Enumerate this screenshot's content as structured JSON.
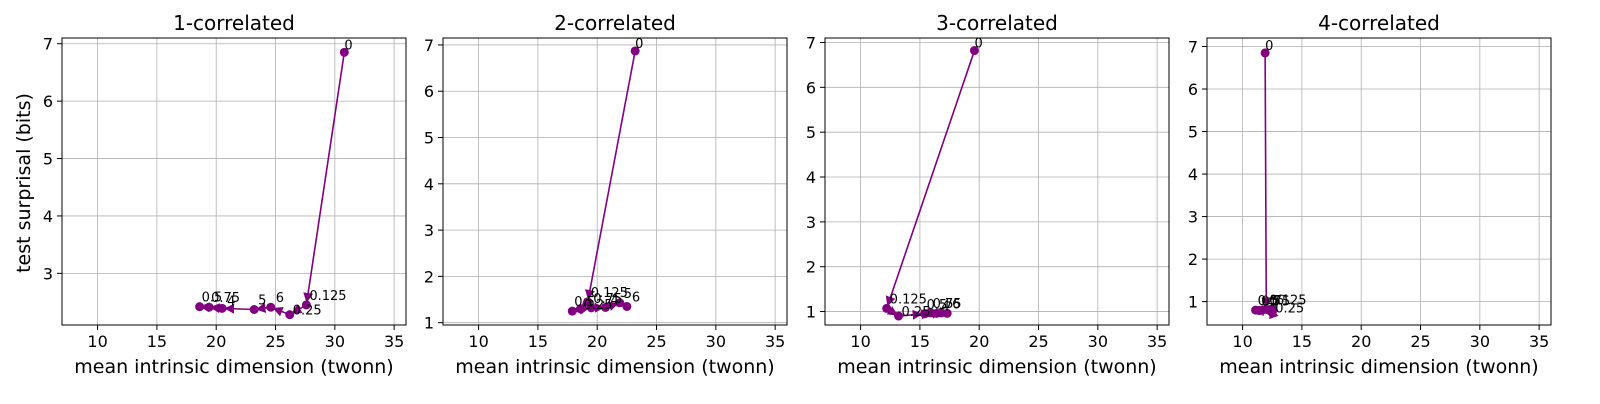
{
  "figure": {
    "ylabel": "test surprisal (bits)"
  },
  "chart_data": [
    {
      "type": "scatter",
      "title": "1-correlated",
      "xlabel": "mean intrinsic dimension (twonn)",
      "xlim": [
        7,
        36
      ],
      "ylim": [
        2.1,
        7.1
      ],
      "xticks": [
        10,
        15,
        20,
        25,
        30,
        35
      ],
      "yticks": [
        3,
        4,
        5,
        6,
        7
      ],
      "grid": true,
      "color": "#800080",
      "points": [
        {
          "label": "0",
          "x": 30.8,
          "y": 6.85
        },
        {
          "label": "0.125",
          "x": 27.6,
          "y": 2.45
        },
        {
          "label": "0.25",
          "x": 26.2,
          "y": 2.28
        },
        {
          "label": "0.5",
          "x": 18.6,
          "y": 2.42
        },
        {
          "label": "0.75",
          "x": 19.4,
          "y": 2.41
        },
        {
          "label": "4",
          "x": 20.5,
          "y": 2.39
        },
        {
          "label": "5",
          "x": 23.2,
          "y": 2.37
        },
        {
          "label": "6",
          "x": 24.6,
          "y": 2.41
        }
      ],
      "path": [
        "0",
        "0.125",
        "0.25",
        "6",
        "5",
        "4",
        "0.75",
        "0.5"
      ]
    },
    {
      "type": "scatter",
      "title": "2-correlated",
      "xlabel": "mean intrinsic dimension (twonn)",
      "xlim": [
        7,
        36
      ],
      "ylim": [
        0.95,
        7.15
      ],
      "xticks": [
        10,
        15,
        20,
        25,
        30,
        35
      ],
      "yticks": [
        1,
        2,
        3,
        4,
        5,
        6,
        7
      ],
      "grid": true,
      "color": "#800080",
      "points": [
        {
          "label": "0",
          "x": 23.2,
          "y": 6.87
        },
        {
          "label": "0.125",
          "x": 19.2,
          "y": 1.45
        },
        {
          "label": "0.25",
          "x": 18.6,
          "y": 1.3
        },
        {
          "label": "0.5",
          "x": 17.9,
          "y": 1.25
        },
        {
          "label": "0.75",
          "x": 19.5,
          "y": 1.32
        },
        {
          "label": "4",
          "x": 20.7,
          "y": 1.33
        },
        {
          "label": "5",
          "x": 21.9,
          "y": 1.43
        },
        {
          "label": "6",
          "x": 22.5,
          "y": 1.35
        }
      ],
      "path": [
        "0",
        "0.125",
        "0.25",
        "0.5",
        "0.75",
        "4",
        "5",
        "6"
      ]
    },
    {
      "type": "scatter",
      "title": "3-correlated",
      "xlabel": "mean intrinsic dimension (twonn)",
      "xlim": [
        7,
        36
      ],
      "ylim": [
        0.7,
        7.1
      ],
      "xticks": [
        10,
        15,
        20,
        25,
        30,
        35
      ],
      "yticks": [
        1,
        2,
        3,
        4,
        5,
        6,
        7
      ],
      "grid": true,
      "color": "#800080",
      "points": [
        {
          "label": "0",
          "x": 19.6,
          "y": 6.82
        },
        {
          "label": "0.125",
          "x": 12.2,
          "y": 1.07
        },
        {
          "label": "0.25",
          "x": 13.2,
          "y": 0.9
        },
        {
          "label": "0.5",
          "x": 15.4,
          "y": 0.95
        },
        {
          "label": "0.75",
          "x": 15.9,
          "y": 0.97
        },
        {
          "label": "4",
          "x": 16.4,
          "y": 0.96
        },
        {
          "label": "5",
          "x": 16.8,
          "y": 0.97
        },
        {
          "label": "6",
          "x": 17.3,
          "y": 0.96
        }
      ],
      "path": [
        "0",
        "0.125",
        "0.25",
        "0.5",
        "0.75",
        "4",
        "5",
        "6"
      ]
    },
    {
      "type": "scatter",
      "title": "4-correlated",
      "xlabel": "mean intrinsic dimension (twonn)",
      "xlim": [
        7,
        36
      ],
      "ylim": [
        0.45,
        7.2
      ],
      "xticks": [
        10,
        15,
        20,
        25,
        30,
        35
      ],
      "yticks": [
        1,
        2,
        3,
        4,
        5,
        6,
        7
      ],
      "grid": true,
      "color": "#800080",
      "points": [
        {
          "label": "0",
          "x": 11.9,
          "y": 6.85
        },
        {
          "label": "0.125",
          "x": 12.0,
          "y": 0.82
        },
        {
          "label": "0.25",
          "x": 12.5,
          "y": 0.74
        },
        {
          "label": "0.5",
          "x": 11.1,
          "y": 0.8
        },
        {
          "label": "0.75",
          "x": 11.4,
          "y": 0.79
        },
        {
          "label": "4",
          "x": 11.7,
          "y": 0.81
        },
        {
          "label": "5",
          "x": 12.2,
          "y": 0.8
        },
        {
          "label": "6",
          "x": 12.4,
          "y": 0.82
        }
      ],
      "path": [
        "0",
        "0.125",
        "0.25",
        "6",
        "5",
        "4",
        "0.75",
        "0.5"
      ]
    }
  ]
}
